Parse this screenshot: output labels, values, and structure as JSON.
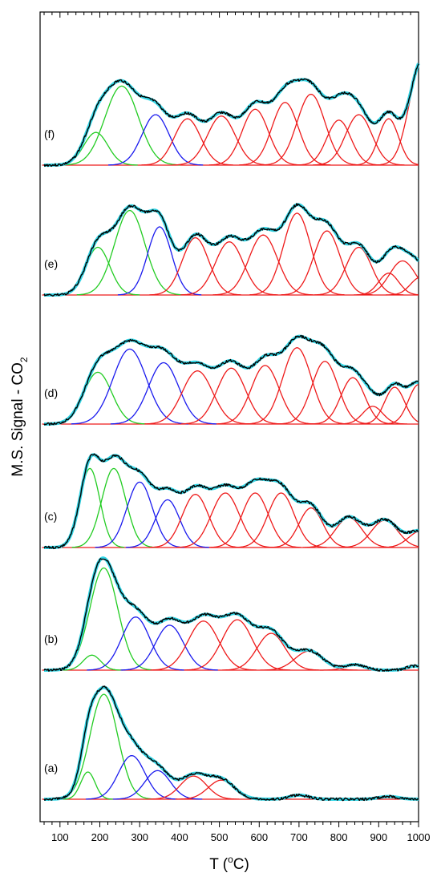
{
  "chart_data": {
    "type": "line",
    "title": "",
    "xlabel": {
      "main": "T (",
      "sup": "o",
      "tail": "C)"
    },
    "ylabel": {
      "main": "M.S. Signal - CO",
      "sub": "2"
    },
    "xlim": [
      50,
      1000
    ],
    "x_ticks": [
      100,
      200,
      300,
      400,
      500,
      600,
      700,
      800,
      900,
      1000
    ],
    "grid": false,
    "legend": "none",
    "colors": {
      "experimental": "#000000",
      "fit": "#33d6e6",
      "low_temp_peak": "#22cc22",
      "mid_temp_peak": "#1a1aee",
      "high_temp_peak": "#ee1a1a",
      "baseline": "#ee1a1a"
    },
    "panels": [
      {
        "label": "(f)",
        "peaks": [
          {
            "center": 190,
            "width": 30,
            "height": 0.24,
            "color": "green"
          },
          {
            "center": 255,
            "width": 42,
            "height": 0.58,
            "color": "green"
          },
          {
            "center": 340,
            "width": 34,
            "height": 0.37,
            "color": "blue"
          },
          {
            "center": 420,
            "width": 33,
            "height": 0.34,
            "color": "red"
          },
          {
            "center": 505,
            "width": 35,
            "height": 0.36,
            "color": "red"
          },
          {
            "center": 590,
            "width": 33,
            "height": 0.41,
            "color": "red"
          },
          {
            "center": 665,
            "width": 33,
            "height": 0.46,
            "color": "red"
          },
          {
            "center": 730,
            "width": 35,
            "height": 0.52,
            "color": "red"
          },
          {
            "center": 800,
            "width": 30,
            "height": 0.33,
            "color": "red"
          },
          {
            "center": 850,
            "width": 33,
            "height": 0.37,
            "color": "red"
          },
          {
            "center": 925,
            "width": 25,
            "height": 0.34,
            "color": "red"
          },
          {
            "center": 1010,
            "width": 32,
            "height": 0.78,
            "color": "red"
          }
        ]
      },
      {
        "label": "(e)",
        "peaks": [
          {
            "center": 195,
            "width": 30,
            "height": 0.35,
            "color": "green"
          },
          {
            "center": 275,
            "width": 38,
            "height": 0.62,
            "color": "green"
          },
          {
            "center": 350,
            "width": 30,
            "height": 0.5,
            "color": "blue"
          },
          {
            "center": 440,
            "width": 33,
            "height": 0.42,
            "color": "red"
          },
          {
            "center": 525,
            "width": 35,
            "height": 0.39,
            "color": "red"
          },
          {
            "center": 610,
            "width": 36,
            "height": 0.44,
            "color": "red"
          },
          {
            "center": 695,
            "width": 34,
            "height": 0.6,
            "color": "red"
          },
          {
            "center": 770,
            "width": 33,
            "height": 0.47,
            "color": "red"
          },
          {
            "center": 850,
            "width": 32,
            "height": 0.35,
            "color": "red"
          },
          {
            "center": 925,
            "width": 25,
            "height": 0.16,
            "color": "red"
          },
          {
            "center": 960,
            "width": 33,
            "height": 0.25,
            "color": "red"
          },
          {
            "center": 1005,
            "width": 25,
            "height": 0.13,
            "color": "red"
          }
        ]
      },
      {
        "label": "(d)",
        "peaks": [
          {
            "center": 195,
            "width": 35,
            "height": 0.38,
            "color": "green"
          },
          {
            "center": 275,
            "width": 42,
            "height": 0.55,
            "color": "blue"
          },
          {
            "center": 360,
            "width": 38,
            "height": 0.45,
            "color": "blue"
          },
          {
            "center": 445,
            "width": 38,
            "height": 0.39,
            "color": "red"
          },
          {
            "center": 530,
            "width": 36,
            "height": 0.41,
            "color": "red"
          },
          {
            "center": 615,
            "width": 35,
            "height": 0.43,
            "color": "red"
          },
          {
            "center": 695,
            "width": 36,
            "height": 0.56,
            "color": "red"
          },
          {
            "center": 765,
            "width": 33,
            "height": 0.46,
            "color": "red"
          },
          {
            "center": 835,
            "width": 30,
            "height": 0.34,
            "color": "red"
          },
          {
            "center": 885,
            "width": 25,
            "height": 0.13,
            "color": "red"
          },
          {
            "center": 940,
            "width": 25,
            "height": 0.27,
            "color": "red"
          },
          {
            "center": 1000,
            "width": 25,
            "height": 0.29,
            "color": "red"
          }
        ]
      },
      {
        "label": "(c)",
        "peaks": [
          {
            "center": 175,
            "width": 25,
            "height": 0.58,
            "color": "green"
          },
          {
            "center": 235,
            "width": 30,
            "height": 0.58,
            "color": "green"
          },
          {
            "center": 300,
            "width": 32,
            "height": 0.48,
            "color": "blue"
          },
          {
            "center": 370,
            "width": 30,
            "height": 0.35,
            "color": "blue"
          },
          {
            "center": 440,
            "width": 33,
            "height": 0.39,
            "color": "red"
          },
          {
            "center": 515,
            "width": 35,
            "height": 0.4,
            "color": "red"
          },
          {
            "center": 590,
            "width": 33,
            "height": 0.4,
            "color": "red"
          },
          {
            "center": 655,
            "width": 33,
            "height": 0.4,
            "color": "red"
          },
          {
            "center": 730,
            "width": 30,
            "height": 0.29,
            "color": "red"
          },
          {
            "center": 825,
            "width": 33,
            "height": 0.22,
            "color": "red"
          },
          {
            "center": 915,
            "width": 33,
            "height": 0.2,
            "color": "red"
          },
          {
            "center": 1005,
            "width": 30,
            "height": 0.12,
            "color": "red"
          }
        ]
      },
      {
        "label": "(b)",
        "peaks": [
          {
            "center": 180,
            "width": 22,
            "height": 0.11,
            "color": "green"
          },
          {
            "center": 210,
            "width": 35,
            "height": 0.75,
            "color": "green"
          },
          {
            "center": 290,
            "width": 35,
            "height": 0.39,
            "color": "blue"
          },
          {
            "center": 375,
            "width": 35,
            "height": 0.33,
            "color": "blue"
          },
          {
            "center": 460,
            "width": 38,
            "height": 0.36,
            "color": "red"
          },
          {
            "center": 545,
            "width": 38,
            "height": 0.37,
            "color": "red"
          },
          {
            "center": 630,
            "width": 35,
            "height": 0.27,
            "color": "red"
          },
          {
            "center": 725,
            "width": 35,
            "height": 0.14,
            "color": "red"
          },
          {
            "center": 840,
            "width": 25,
            "height": 0.04,
            "color": "red"
          },
          {
            "center": 990,
            "width": 20,
            "height": 0.03,
            "color": "red"
          }
        ]
      },
      {
        "label": "(a)",
        "peaks": [
          {
            "center": 170,
            "width": 18,
            "height": 0.2,
            "color": "green"
          },
          {
            "center": 210,
            "width": 35,
            "height": 0.77,
            "color": "green"
          },
          {
            "center": 280,
            "width": 33,
            "height": 0.32,
            "color": "blue"
          },
          {
            "center": 345,
            "width": 32,
            "height": 0.21,
            "color": "blue"
          },
          {
            "center": 435,
            "width": 33,
            "height": 0.17,
            "color": "red"
          },
          {
            "center": 505,
            "width": 33,
            "height": 0.14,
            "color": "red"
          },
          {
            "center": 700,
            "width": 25,
            "height": 0.03,
            "color": "red"
          },
          {
            "center": 925,
            "width": 25,
            "height": 0.02,
            "color": "red"
          }
        ]
      }
    ]
  }
}
